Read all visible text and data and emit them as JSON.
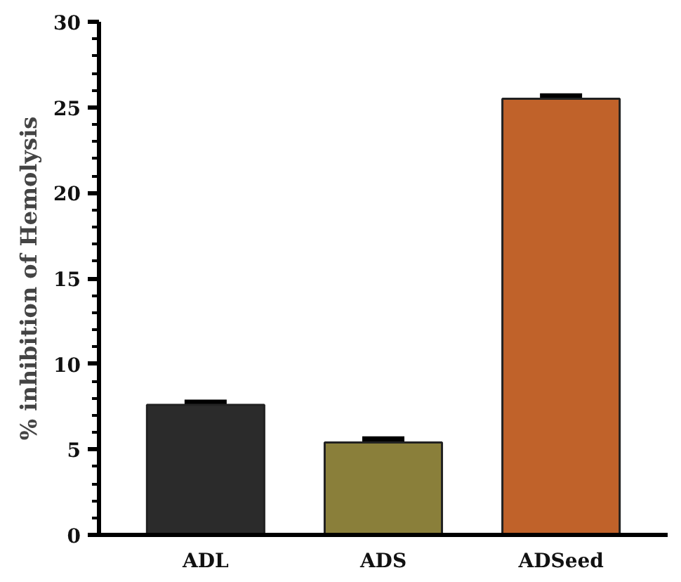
{
  "chart_data": {
    "type": "bar",
    "ylabel": "% inhibition of Hemolysis",
    "categories": [
      "ADL",
      "ADS",
      "ADSeed"
    ],
    "values": [
      7.6,
      5.4,
      25.5
    ],
    "errors": [
      0.15,
      0.2,
      0.15
    ],
    "colors": [
      "#2b2b2b",
      "#8a7f3a",
      "#c0622a"
    ],
    "ylim": [
      0,
      30
    ],
    "yticks": [
      0,
      5,
      10,
      15,
      20,
      25,
      30
    ],
    "grid": false
  }
}
